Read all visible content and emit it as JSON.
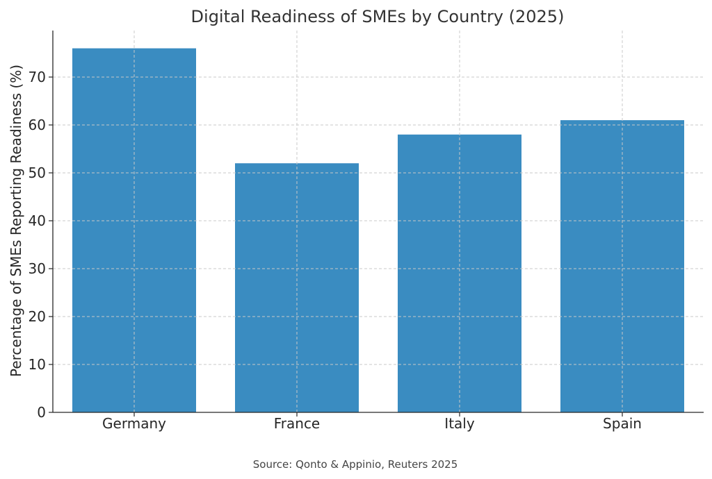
{
  "chart_data": {
    "type": "bar",
    "title": "Digital Readiness of SMEs by Country (2025)",
    "xlabel": "",
    "ylabel": "Percentage of SMEs Reporting Readiness (%)",
    "categories": [
      "Germany",
      "France",
      "Italy",
      "Spain"
    ],
    "values": [
      76,
      52,
      58,
      61
    ],
    "ylim": [
      0,
      80
    ],
    "yticks": [
      0,
      10,
      20,
      30,
      40,
      50,
      60,
      70
    ],
    "grid": true,
    "bar_color": "#3a8cc1",
    "source": "Source: Qonto & Appinio, Reuters 2025"
  }
}
